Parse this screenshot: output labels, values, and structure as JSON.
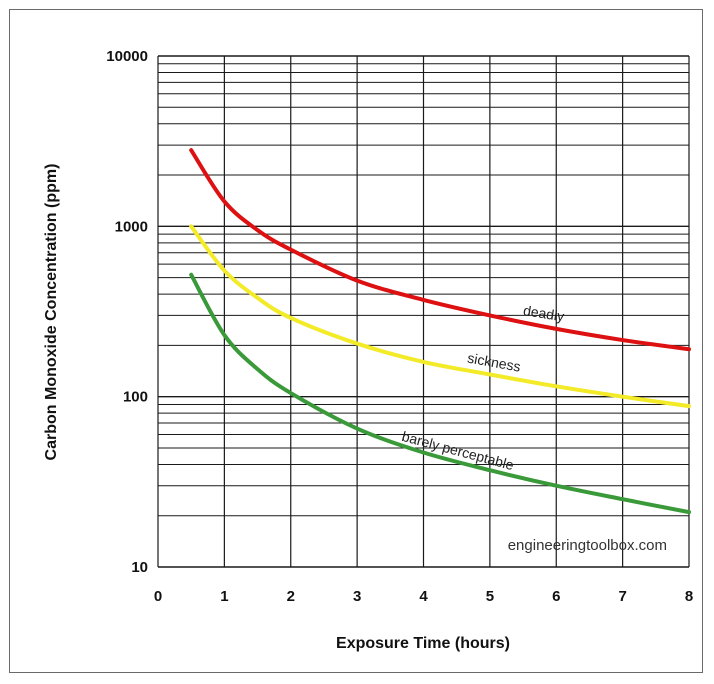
{
  "chart_data": {
    "type": "line",
    "xlabel": "Exposure Time (hours)",
    "ylabel": "Carbon Monoxide Concentration (ppm)",
    "xlim": [
      0,
      8
    ],
    "ylim": [
      10,
      10000
    ],
    "yscale": "log",
    "grid": true,
    "x_ticks": [
      "0",
      "1",
      "2",
      "3",
      "4",
      "5",
      "6",
      "7",
      "8"
    ],
    "y_ticks": [
      "10",
      "100",
      "1000",
      "10000"
    ],
    "watermark": "engineeringtoolbox.com",
    "series": [
      {
        "name": "deadly",
        "color": "#dd1111",
        "x": [
          0.5,
          1,
          1.5,
          2,
          3,
          4,
          5,
          6,
          7,
          8
        ],
        "values": [
          2800,
          1400,
          950,
          730,
          480,
          370,
          300,
          250,
          215,
          190
        ]
      },
      {
        "name": "sickness",
        "color": "#f3ea28",
        "x": [
          0.5,
          1,
          1.5,
          2,
          3,
          4,
          5,
          6,
          7,
          8
        ],
        "values": [
          1000,
          550,
          380,
          290,
          205,
          160,
          135,
          115,
          100,
          88
        ]
      },
      {
        "name": "barely perceptable",
        "color": "#3a9a3a",
        "x": [
          0.5,
          1,
          1.5,
          2,
          3,
          4,
          5,
          6,
          7,
          8
        ],
        "values": [
          520,
          230,
          145,
          105,
          65,
          47,
          37,
          30,
          25,
          21
        ]
      }
    ]
  }
}
